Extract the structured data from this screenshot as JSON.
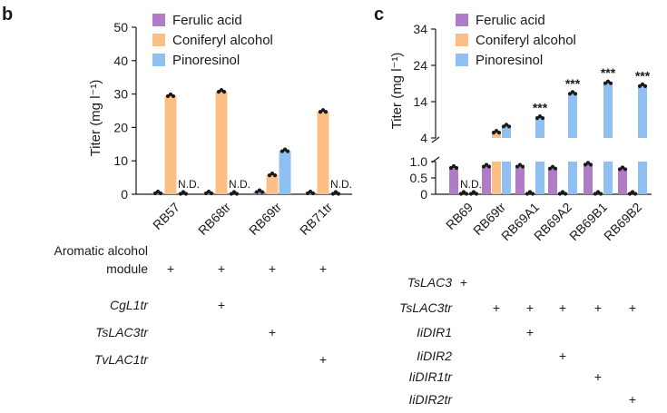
{
  "colors": {
    "ferulic": "#b07cc6",
    "coniferyl": "#fbbf85",
    "pinoresinol": "#8fc0f1",
    "dot": "#1a1a1a"
  },
  "chart_data": [
    {
      "type": "bar",
      "panel": "b",
      "ylabel": "Titer (mg l⁻¹)",
      "ylim": [
        0,
        50
      ],
      "yticks": [
        "0",
        "10",
        "20",
        "30",
        "40",
        "50"
      ],
      "categories": [
        "RB57",
        "RB68tr",
        "RB69tr",
        "RB71tr"
      ],
      "legend": [
        "Ferulic acid",
        "Coniferyl alcohol",
        "Pinoresinol"
      ],
      "series": [
        {
          "name": "Ferulic acid",
          "values": [
            0.4,
            0.4,
            0.8,
            0.4
          ]
        },
        {
          "name": "Coniferyl alcohol",
          "values": [
            29.5,
            30.8,
            5.8,
            24.8
          ]
        },
        {
          "name": "Pinoresinol",
          "values": [
            null,
            null,
            13.0,
            null
          ]
        }
      ],
      "not_detected_label": "N.D.",
      "not_detected": [
        0,
        1,
        3
      ],
      "table": {
        "rows": [
          {
            "label": "Aromatic alcohol\nmodule",
            "italic": false,
            "marks": [
              "+",
              "+",
              "+",
              "+"
            ]
          },
          {
            "label": "CgL1tr",
            "italic": true,
            "marks": [
              "",
              "+",
              "",
              ""
            ]
          },
          {
            "label": "TsLAC3tr",
            "italic": true,
            "marks": [
              "",
              "",
              "+",
              ""
            ]
          },
          {
            "label": "TvLAC1tr",
            "italic": true,
            "marks": [
              "",
              "",
              "",
              "+"
            ]
          }
        ]
      }
    },
    {
      "type": "bar",
      "panel": "c",
      "ylabel": "Titer (mg l⁻¹)",
      "yticks_upper": [
        "4",
        "14",
        "24",
        "34"
      ],
      "yticks_lower": [
        "0",
        "0.5",
        "1.0"
      ],
      "ylim_upper": [
        4,
        34
      ],
      "ylim_lower": [
        0,
        1.0
      ],
      "categories": [
        "RB69",
        "RB69tr",
        "RB69A1",
        "RB69A2",
        "RB69B1",
        "RB69B2"
      ],
      "legend": [
        "Ferulic acid",
        "Coniferyl alcohol",
        "Pinoresinol"
      ],
      "series": [
        {
          "name": "Ferulic acid",
          "values": [
            0.82,
            0.86,
            0.86,
            0.8,
            0.92,
            0.78
          ]
        },
        {
          "name": "Coniferyl alcohol",
          "values": [
            0.0,
            5.6,
            0.02,
            0.02,
            0.02,
            0.02
          ]
        },
        {
          "name": "Pinoresinol",
          "values": [
            0.0,
            7.3,
            9.6,
            16.3,
            19.2,
            18.4
          ]
        }
      ],
      "not_detected_label": "N.D.",
      "not_detected": [
        0
      ],
      "significance": [
        "",
        "",
        "***",
        "***",
        "***",
        "***"
      ],
      "table": {
        "rows": [
          {
            "label": "TsLAC3",
            "marks": [
              "+",
              "",
              "",
              "",
              "",
              ""
            ]
          },
          {
            "label": "TsLAC3tr",
            "marks": [
              "",
              "+",
              "+",
              "+",
              "+",
              "+"
            ]
          },
          {
            "label": "IiDIR1",
            "marks": [
              "",
              "",
              "+",
              "",
              "",
              ""
            ]
          },
          {
            "label": "IiDIR2",
            "marks": [
              "",
              "",
              "",
              "+",
              "",
              ""
            ]
          },
          {
            "label": "IiDIR1tr",
            "marks": [
              "",
              "",
              "",
              "",
              "+",
              ""
            ]
          },
          {
            "label": "IiDIR2tr",
            "marks": [
              "",
              "",
              "",
              "",
              "",
              "+"
            ]
          }
        ]
      }
    }
  ]
}
